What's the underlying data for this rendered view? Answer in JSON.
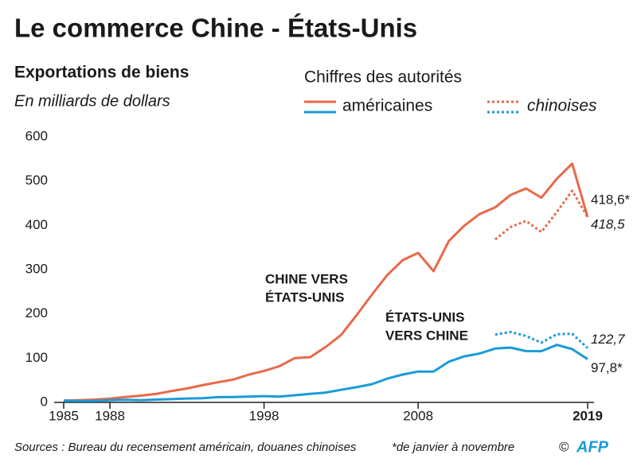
{
  "chart_data": {
    "type": "line",
    "title": "Le commerce Chine - États-Unis",
    "subtitle": "Exportations de biens",
    "unit_label": "En milliards de dollars",
    "legend": {
      "title": "Chiffres des autorités",
      "entries": [
        {
          "label": "américaines",
          "style": "solid",
          "colors": [
            "#e8694a",
            "#1a9bd7"
          ]
        },
        {
          "label": "chinoises",
          "style": "dotted",
          "colors": [
            "#e8694a",
            "#1a9bd7"
          ]
        }
      ]
    },
    "x": [
      1985,
      1986,
      1987,
      1988,
      1989,
      1990,
      1991,
      1992,
      1993,
      1994,
      1995,
      1996,
      1997,
      1998,
      1999,
      2000,
      2001,
      2002,
      2003,
      2004,
      2005,
      2006,
      2007,
      2008,
      2009,
      2010,
      2011,
      2012,
      2013,
      2014,
      2015,
      2016,
      2017,
      2018,
      2019
    ],
    "xlim": [
      1985,
      2019
    ],
    "xticks": [
      1985,
      1988,
      1998,
      2008,
      2019
    ],
    "ylim": [
      0,
      600
    ],
    "yticks": [
      0,
      100,
      200,
      300,
      400,
      500,
      600
    ],
    "grid": false,
    "series": [
      {
        "color": "#e8694a",
        "style": "solid",
        "values": [
          3.9,
          4.8,
          6.3,
          8.5,
          12,
          15.2,
          19,
          25.7,
          31.5,
          38.8,
          45.5,
          51.5,
          62.6,
          71.2,
          81.8,
          100,
          102.3,
          125.2,
          152.4,
          196.7,
          243.5,
          287.8,
          321.4,
          337.8,
          296.4,
          364.9,
          399.4,
          425.6,
          440.4,
          468.5,
          483.2,
          462.4,
          505.2,
          539.5,
          418.6
        ],
        "value_labels": [
          null,
          null,
          null,
          null,
          null,
          null,
          null,
          null,
          null,
          null,
          null,
          null,
          null,
          null,
          null,
          null,
          null,
          null,
          null,
          null,
          null,
          null,
          null,
          null,
          null,
          null,
          null,
          null,
          null,
          null,
          null,
          null,
          null,
          null,
          "418,6*"
        ]
      },
      {
        "color": "#e8694a",
        "style": "dotted",
        "values": [
          null,
          null,
          null,
          null,
          null,
          null,
          null,
          null,
          null,
          null,
          null,
          null,
          null,
          null,
          null,
          null,
          null,
          null,
          null,
          null,
          null,
          null,
          null,
          null,
          null,
          null,
          null,
          null,
          368,
          396,
          410,
          385,
          430,
          478,
          418.5
        ],
        "value_labels": [
          null,
          null,
          null,
          null,
          null,
          null,
          null,
          null,
          null,
          null,
          null,
          null,
          null,
          null,
          null,
          null,
          null,
          null,
          null,
          null,
          null,
          null,
          null,
          null,
          null,
          null,
          null,
          null,
          null,
          null,
          null,
          null,
          null,
          null,
          "418,5"
        ]
      },
      {
        "color": "#1a9bd7",
        "style": "dotted",
        "values": [
          null,
          null,
          null,
          null,
          null,
          null,
          null,
          null,
          null,
          null,
          null,
          null,
          null,
          null,
          null,
          null,
          null,
          null,
          null,
          null,
          null,
          null,
          null,
          null,
          null,
          null,
          null,
          null,
          153,
          159,
          150,
          135,
          154,
          155,
          122.7
        ],
        "value_labels": [
          null,
          null,
          null,
          null,
          null,
          null,
          null,
          null,
          null,
          null,
          null,
          null,
          null,
          null,
          null,
          null,
          null,
          null,
          null,
          null,
          null,
          null,
          null,
          null,
          null,
          null,
          null,
          null,
          null,
          null,
          null,
          null,
          null,
          null,
          "122,7"
        ]
      },
      {
        "color": "#1a9bd7",
        "style": "solid",
        "values": [
          3.9,
          3.1,
          3.5,
          5,
          5.8,
          4.8,
          6.3,
          7.4,
          8.8,
          9.3,
          11.8,
          12,
          12.9,
          14.2,
          13.1,
          16.2,
          19.2,
          22.1,
          28.4,
          34.4,
          41.2,
          53.7,
          62.9,
          69.7,
          69.5,
          91.9,
          104.1,
          110.5,
          121.7,
          123.7,
          115.9,
          115.6,
          129.9,
          120.3,
          97.8
        ],
        "value_labels": [
          null,
          null,
          null,
          null,
          null,
          null,
          null,
          null,
          null,
          null,
          null,
          null,
          null,
          null,
          null,
          null,
          null,
          null,
          null,
          null,
          null,
          null,
          null,
          null,
          null,
          null,
          null,
          null,
          null,
          null,
          null,
          null,
          null,
          null,
          "97,8*"
        ]
      }
    ],
    "annotations": [
      {
        "lines": [
          "CHINE VERS",
          "ÉTATS-UNIS"
        ]
      },
      {
        "lines": [
          "ÉTATS-UNIS",
          "VERS CHINE"
        ]
      }
    ],
    "source": "Sources : Bureau du recensement américain, douanes chinoises",
    "note": "*de janvier à novembre",
    "credit": "©",
    "logo": "AFP"
  }
}
